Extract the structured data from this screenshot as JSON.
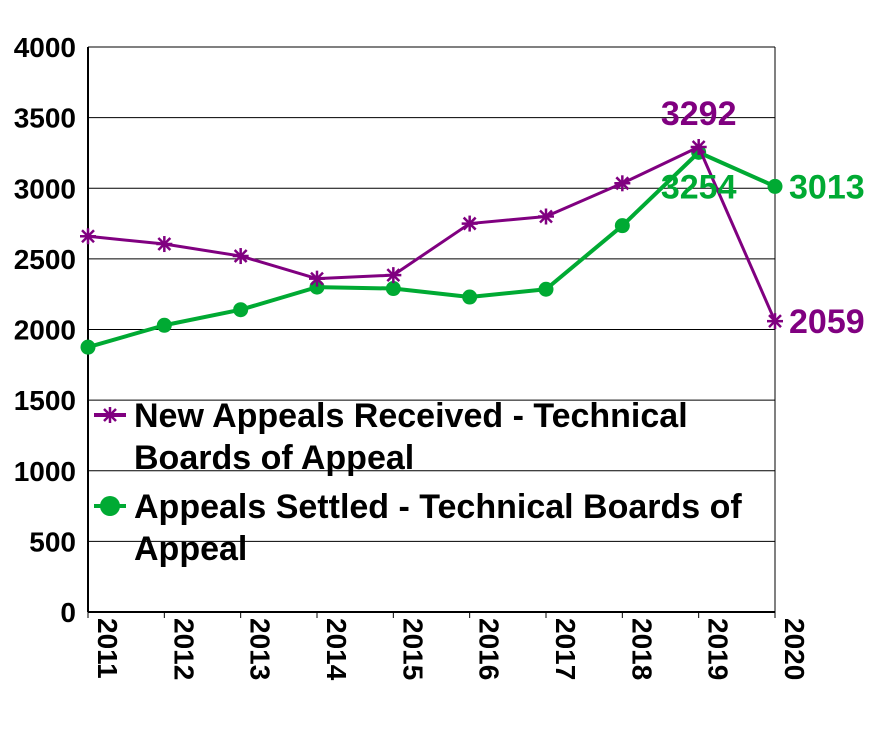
{
  "chart_data": {
    "type": "line",
    "categories": [
      "2011",
      "2012",
      "2013",
      "2014",
      "2015",
      "2016",
      "2017",
      "2018",
      "2019",
      "2020"
    ],
    "ylim": [
      0,
      4000
    ],
    "yticks": [
      "0",
      "500",
      "1000",
      "1500",
      "2000",
      "2500",
      "3000",
      "3500",
      "4000"
    ],
    "grid": true,
    "legend_placement": "center-left",
    "series": [
      {
        "name": "New Appeals Received - Technical Boards of Appeal",
        "legend_lines": [
          "New Appeals Received - Technical",
          "Boards of Appeal"
        ],
        "color": "#800080",
        "marker": "star",
        "values": [
          2660,
          2605,
          2520,
          2360,
          2385,
          2750,
          2800,
          3035,
          3292,
          2059
        ],
        "labels": [
          {
            "index": 8,
            "text": "3292"
          },
          {
            "index": 9,
            "text": "2059"
          }
        ]
      },
      {
        "name": "Appeals Settled - Technical Boards of Appeal",
        "legend_lines": [
          "Appeals Settled - Technical Boards of",
          "Appeal"
        ],
        "color": "#00AA33",
        "marker": "circle",
        "values": [
          1875,
          2030,
          2140,
          2300,
          2290,
          2230,
          2285,
          2735,
          3254,
          3013
        ],
        "labels": [
          {
            "index": 8,
            "text": "3254"
          },
          {
            "index": 9,
            "text": "3013"
          }
        ]
      }
    ]
  }
}
